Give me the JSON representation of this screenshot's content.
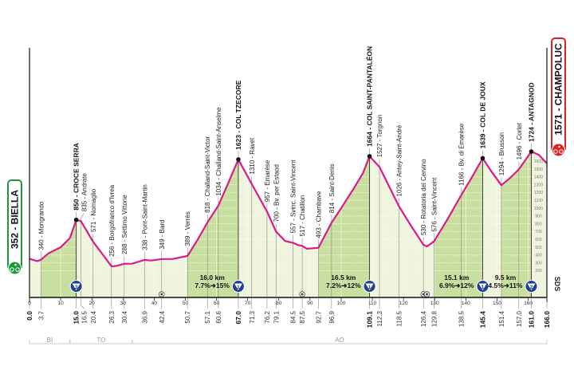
{
  "chart_data": {
    "type": "area",
    "xlim": [
      0,
      166
    ],
    "x_ticks": [
      0,
      10,
      20,
      30,
      40,
      50,
      60,
      70,
      80,
      90,
      100,
      110,
      120,
      130,
      140,
      150,
      160
    ],
    "altitude_ticks": [
      200,
      300,
      400,
      500,
      600,
      700,
      800,
      900,
      1000,
      1100,
      1200,
      1300,
      1400,
      1500,
      1600
    ],
    "profile": [
      [
        0,
        352
      ],
      [
        2.5,
        322
      ],
      [
        3.7,
        340
      ],
      [
        6,
        420
      ],
      [
        10,
        500
      ],
      [
        13,
        620
      ],
      [
        15,
        850
      ],
      [
        16.5,
        835
      ],
      [
        20.4,
        571
      ],
      [
        24,
        380
      ],
      [
        26.3,
        256
      ],
      [
        28,
        262
      ],
      [
        30.4,
        288
      ],
      [
        33,
        290
      ],
      [
        36.9,
        338
      ],
      [
        39,
        330
      ],
      [
        42.4,
        349
      ],
      [
        46,
        350
      ],
      [
        50.7,
        389
      ],
      [
        54,
        600
      ],
      [
        57.1,
        818
      ],
      [
        60.6,
        1034
      ],
      [
        63,
        1250
      ],
      [
        67,
        1623
      ],
      [
        71.3,
        1310
      ],
      [
        76.2,
        957
      ],
      [
        79.1,
        700
      ],
      [
        82,
        580
      ],
      [
        84.5,
        557
      ],
      [
        86,
        530
      ],
      [
        87.5,
        517
      ],
      [
        89,
        480
      ],
      [
        92.7,
        493
      ],
      [
        96.9,
        814
      ],
      [
        100,
        1000
      ],
      [
        104,
        1250
      ],
      [
        107,
        1450
      ],
      [
        109.1,
        1664
      ],
      [
        112.3,
        1527
      ],
      [
        118.5,
        1026
      ],
      [
        122,
        800
      ],
      [
        126.4,
        530
      ],
      [
        127.5,
        510
      ],
      [
        129.8,
        576
      ],
      [
        134,
        850
      ],
      [
        138.5,
        1166
      ],
      [
        142,
        1400
      ],
      [
        145.4,
        1639
      ],
      [
        148,
        1480
      ],
      [
        151.4,
        1294
      ],
      [
        154,
        1380
      ],
      [
        157,
        1496
      ],
      [
        161,
        1724
      ],
      [
        163.5,
        1680
      ],
      [
        166,
        1571
      ]
    ],
    "climb_segments": [
      [
        3.7,
        15
      ],
      [
        50.7,
        67
      ],
      [
        92.7,
        109.1
      ],
      [
        129.8,
        145.4
      ],
      [
        151.4,
        161
      ]
    ],
    "waypoints": [
      {
        "km": 3.7,
        "ele": 340,
        "label": "340 - Mongrando",
        "bold": false
      },
      {
        "km": 15.0,
        "ele": 850,
        "label": "850 - CROCE SERRA",
        "bold": true
      },
      {
        "km": 16.5,
        "ele": 835,
        "label": "835 - Andrate",
        "bold": false
      },
      {
        "km": 20.4,
        "ele": 571,
        "label": "571 - Nomaglio",
        "bold": false
      },
      {
        "km": 26.3,
        "ele": 256,
        "label": "256 - Borgofranco d'Ivrea",
        "bold": false
      },
      {
        "km": 30.4,
        "ele": 288,
        "label": "288 - Settimo Vittone",
        "bold": false
      },
      {
        "km": 36.9,
        "ele": 338,
        "label": "338 - Pont-Saint-Martin",
        "bold": false
      },
      {
        "km": 42.4,
        "ele": 349,
        "label": "349 - Bard",
        "bold": false
      },
      {
        "km": 50.7,
        "ele": 389,
        "label": "389 - Verrès",
        "bold": false
      },
      {
        "km": 57.1,
        "ele": 818,
        "label": "818 - Challand-Saint-Victor",
        "bold": false
      },
      {
        "km": 60.6,
        "ele": 1034,
        "label": "1034 - Challand-Saint-Anselme",
        "bold": false
      },
      {
        "km": 67.0,
        "ele": 1623,
        "label": "1623 - COL TZECORE",
        "bold": true
      },
      {
        "km": 71.3,
        "ele": 1310,
        "label": "1310 - Ravet",
        "bold": false
      },
      {
        "km": 76.2,
        "ele": 957,
        "label": "957 - Emarèse",
        "bold": false
      },
      {
        "km": 79.1,
        "ele": 700,
        "label": "700 - Bv. per Estaod",
        "bold": false
      },
      {
        "km": 84.5,
        "ele": 557,
        "label": "557 - Svinc. Saint-Vincent",
        "bold": false
      },
      {
        "km": 87.5,
        "ele": 517,
        "label": "517 - Chatillon",
        "bold": false
      },
      {
        "km": 92.7,
        "ele": 493,
        "label": "493 - Chambave",
        "bold": false
      },
      {
        "km": 96.9,
        "ele": 814,
        "label": "814 - Saint-Denis",
        "bold": false
      },
      {
        "km": 109.1,
        "ele": 1664,
        "label": "1664 - COL SAINT-PANTALÉON",
        "bold": true
      },
      {
        "km": 112.3,
        "ele": 1527,
        "label": "1527 - Torgnon",
        "bold": false
      },
      {
        "km": 118.5,
        "ele": 1026,
        "label": "1026 - Antey-Saint-André",
        "bold": false
      },
      {
        "km": 126.4,
        "ele": 530,
        "label": "530 - Rotatoria del Cervino",
        "bold": false
      },
      {
        "km": 129.8,
        "ele": 576,
        "label": "576 - Saint-Vincent",
        "bold": false
      },
      {
        "km": 138.5,
        "ele": 1166,
        "label": "1166 - Bv. di Emarèse",
        "bold": false
      },
      {
        "km": 145.4,
        "ele": 1639,
        "label": "1639 - COL DE JOUX",
        "bold": true
      },
      {
        "km": 151.4,
        "ele": 1294,
        "label": "1294 - Brusson",
        "bold": false
      },
      {
        "km": 157.0,
        "ele": 1496,
        "label": "1496 - Corlet",
        "bold": false
      },
      {
        "km": 161.0,
        "ele": 1724,
        "label": "1724 - ANTAGNOD",
        "bold": true
      }
    ],
    "km_labels": [
      {
        "text": "0.0",
        "km": 0,
        "bold": true
      },
      {
        "text": "3.7",
        "km": 3.7
      },
      {
        "text": "15.0",
        "km": 15,
        "bold": true
      },
      {
        "text": "16.5",
        "km": 16.5
      },
      {
        "text": "20.4",
        "km": 20.4
      },
      {
        "text": "26.3",
        "km": 26.3
      },
      {
        "text": "30.4",
        "km": 30.4
      },
      {
        "text": "36.9",
        "km": 36.9
      },
      {
        "text": "42.4",
        "km": 42.4
      },
      {
        "text": "50.7",
        "km": 50.7
      },
      {
        "text": "57.1",
        "km": 57.1
      },
      {
        "text": "60.6",
        "km": 60.6
      },
      {
        "text": "67.0",
        "km": 67,
        "bold": true
      },
      {
        "text": "71.3",
        "km": 71.3
      },
      {
        "text": "76.2",
        "km": 76.2
      },
      {
        "text": "79.1",
        "km": 79.1
      },
      {
        "text": "84.5",
        "km": 84.5
      },
      {
        "text": "87.5",
        "km": 87.5
      },
      {
        "text": "92.7",
        "km": 92.7
      },
      {
        "text": "96.9",
        "km": 96.9
      },
      {
        "text": "109.1",
        "km": 109.1,
        "bold": true
      },
      {
        "text": "112.3",
        "km": 112.3
      },
      {
        "text": "118.5",
        "km": 118.5
      },
      {
        "text": "126.4",
        "km": 126.4
      },
      {
        "text": "129.8",
        "km": 129.8
      },
      {
        "text": "138.5",
        "km": 138.5
      },
      {
        "text": "145.4",
        "km": 145.4,
        "bold": true
      },
      {
        "text": "151.4",
        "km": 151.4
      },
      {
        "text": "157.0",
        "km": 157
      },
      {
        "text": "161.0",
        "km": 161,
        "bold": true
      },
      {
        "text": "166.0",
        "km": 166,
        "bold": true
      }
    ],
    "kom_markers": [
      {
        "km": 15,
        "category": "3"
      },
      {
        "km": 67,
        "category": "1"
      },
      {
        "km": 109.1,
        "category": "1"
      },
      {
        "km": 145.4,
        "category": "1"
      },
      {
        "km": 161,
        "category": "2"
      }
    ],
    "climb_info": [
      {
        "km": 60,
        "length": "16.0 km",
        "gradient": "7.7%➜15%"
      },
      {
        "km": 101,
        "length": "16.5 km",
        "gradient": "7.2%➜12%"
      },
      {
        "km": 139,
        "length": "15.1 km",
        "gradient": "6.9%➜12%"
      },
      {
        "km": 156,
        "length": "9.5 km",
        "gradient": "4.5%➜11%"
      }
    ],
    "other_markers_km": [
      42.4,
      87.5,
      126.4,
      127.5
    ],
    "provinces": [
      {
        "code": "BI",
        "from": 0,
        "to": 13
      },
      {
        "code": "TO",
        "from": 13,
        "to": 33
      },
      {
        "code": "AO",
        "from": 33,
        "to": 166
      }
    ],
    "start": {
      "label": "352 - BIELLA",
      "color": "#1a9a3a"
    },
    "finish": {
      "label": "1571 - CHAMPOLUC",
      "color": "#e02020"
    },
    "logo": "SDS",
    "colors": {
      "profile_line": "#d81b8c",
      "climb_fill": "#c9dfa0",
      "flat_fill": "#eef5dc",
      "kom_badge": "#1f3f8f"
    }
  }
}
